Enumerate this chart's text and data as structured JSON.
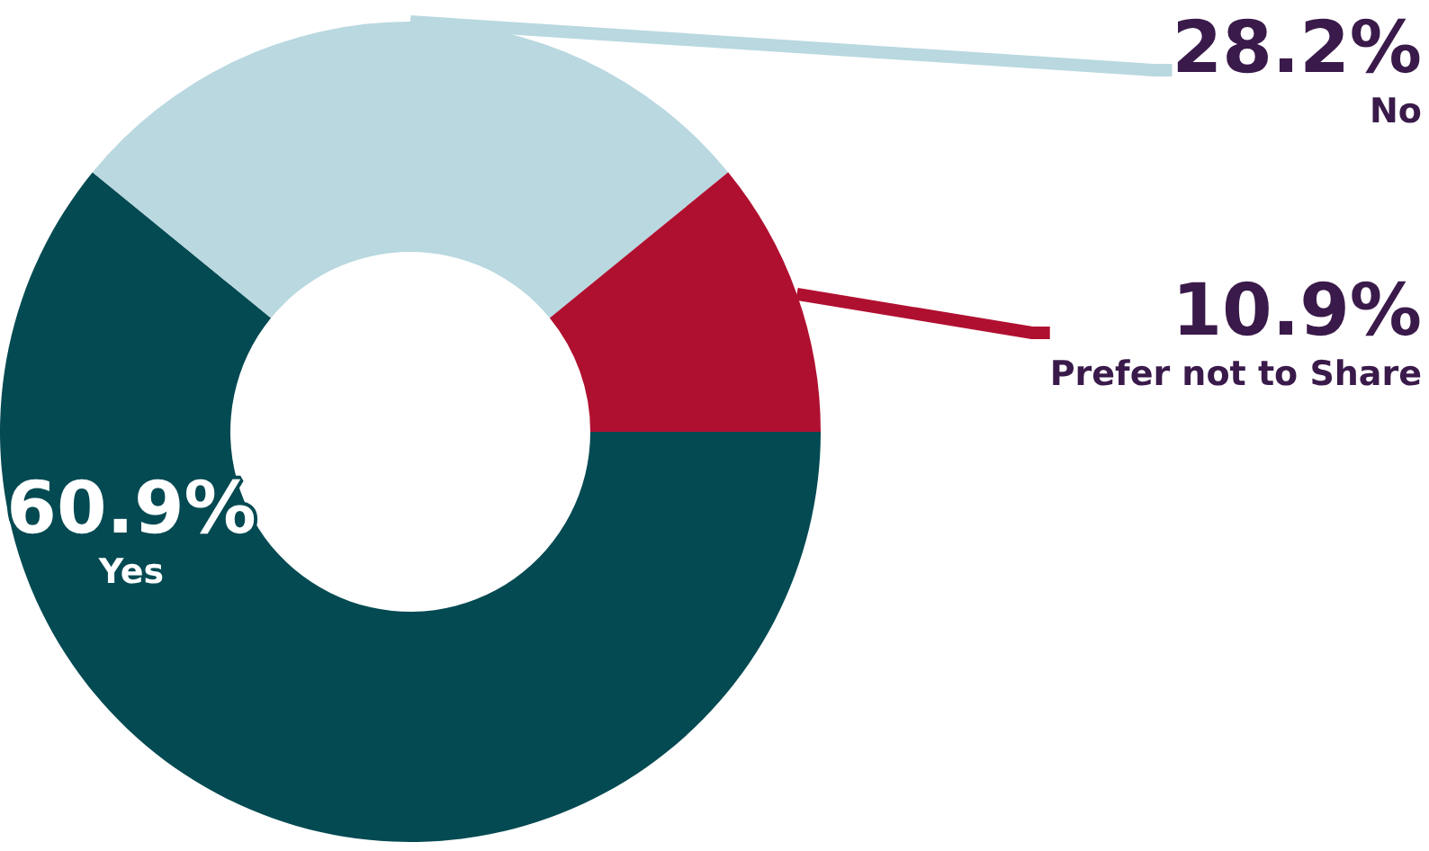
{
  "chart_data": {
    "type": "donut",
    "categories": [
      "Yes",
      "No",
      "Prefer not to Share"
    ],
    "values": [
      60.9,
      28.2,
      10.9
    ],
    "value_labels": [
      "60.9%",
      "28.2%",
      "10.9%"
    ],
    "colors": [
      "#044a52",
      "#b9d8e0",
      "#b01030"
    ]
  }
}
